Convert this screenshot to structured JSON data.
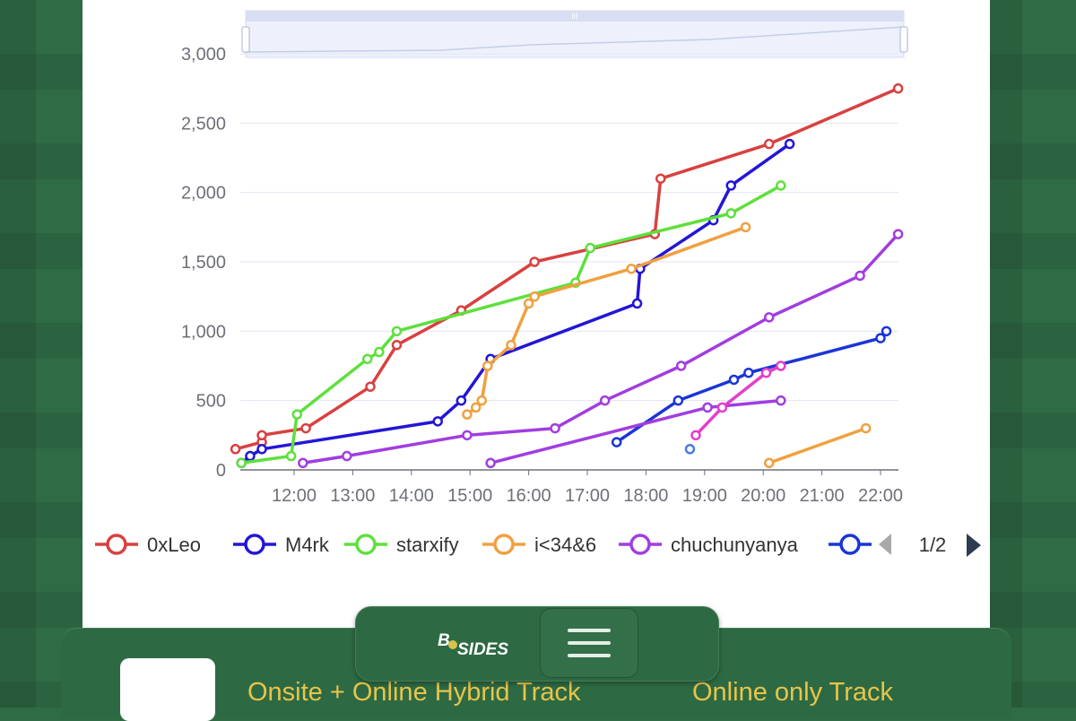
{
  "chart_data": {
    "type": "line",
    "title": "",
    "xlabel": "",
    "ylabel": "",
    "x_ticks": [
      "12:00",
      "13:00",
      "14:00",
      "15:00",
      "16:00",
      "17:00",
      "18:00",
      "19:00",
      "20:00",
      "21:00",
      "22:00"
    ],
    "y_ticks": [
      "0",
      "500",
      "1,000",
      "1,500",
      "2,000",
      "2,500",
      "3,000"
    ],
    "ylim": [
      0,
      3000
    ],
    "xlim_hours": [
      11.0,
      22.3
    ],
    "grid": "horizontal",
    "legend_position": "bottom",
    "legend_page": "1/2",
    "series": [
      {
        "name": "0xLeo",
        "color": "#d94040",
        "points": [
          [
            11.0,
            150
          ],
          [
            11.45,
            200
          ],
          [
            11.45,
            250
          ],
          [
            12.2,
            300
          ],
          [
            13.3,
            600
          ],
          [
            13.75,
            900
          ],
          [
            14.85,
            1150
          ],
          [
            16.1,
            1500
          ],
          [
            18.15,
            1700
          ],
          [
            18.25,
            2100
          ],
          [
            20.1,
            2350
          ],
          [
            22.3,
            2750
          ]
        ]
      },
      {
        "name": "M4rk",
        "color": "#2216d6",
        "points": [
          [
            11.1,
            50
          ],
          [
            11.25,
            100
          ],
          [
            11.45,
            150
          ],
          [
            14.45,
            350
          ],
          [
            14.85,
            500
          ],
          [
            15.35,
            800
          ],
          [
            17.85,
            1200
          ],
          [
            17.9,
            1450
          ],
          [
            19.15,
            1800
          ],
          [
            19.45,
            2050
          ],
          [
            20.45,
            2350
          ]
        ]
      },
      {
        "name": "starxify",
        "color": "#5ee03c",
        "points": [
          [
            11.1,
            50
          ],
          [
            11.95,
            100
          ],
          [
            12.05,
            400
          ],
          [
            13.25,
            800
          ],
          [
            13.45,
            850
          ],
          [
            13.75,
            1000
          ],
          [
            16.8,
            1350
          ],
          [
            17.05,
            1600
          ],
          [
            19.45,
            1850
          ],
          [
            20.3,
            2050
          ]
        ]
      },
      {
        "name": "i<34&6",
        "color": "#f0a040",
        "points": [
          [
            14.95,
            400
          ],
          [
            15.1,
            450
          ],
          [
            15.2,
            500
          ],
          [
            15.3,
            750
          ],
          [
            15.7,
            900
          ],
          [
            16.0,
            1200
          ],
          [
            16.1,
            1250
          ],
          [
            17.75,
            1450
          ],
          [
            19.7,
            1750
          ]
        ]
      },
      {
        "name": "chuchunyanya",
        "color": "#a03ee0",
        "points": [
          [
            12.15,
            50
          ],
          [
            12.9,
            100
          ],
          [
            14.95,
            250
          ],
          [
            16.45,
            300
          ],
          [
            17.3,
            500
          ],
          [
            18.6,
            750
          ],
          [
            20.1,
            1100
          ],
          [
            21.65,
            1400
          ],
          [
            22.3,
            1700
          ]
        ]
      },
      {
        "name": "",
        "color": "#1a35d6",
        "points": [
          [
            17.5,
            200
          ],
          [
            18.55,
            500
          ],
          [
            19.5,
            650
          ],
          [
            19.75,
            700
          ],
          [
            22.0,
            950
          ],
          [
            22.1,
            1000
          ]
        ]
      },
      {
        "name": "",
        "color": "#a03ee0",
        "points": [
          [
            15.35,
            50
          ],
          [
            19.05,
            450
          ],
          [
            20.3,
            500
          ]
        ]
      },
      {
        "name": "",
        "color": "#e33fc9",
        "points": [
          [
            18.85,
            250
          ],
          [
            19.3,
            450
          ],
          [
            20.05,
            700
          ],
          [
            20.3,
            750
          ]
        ]
      },
      {
        "name": "",
        "color": "#f0a040",
        "points": [
          [
            20.1,
            50
          ],
          [
            21.75,
            300
          ]
        ]
      },
      {
        "name": "",
        "color": "#4a7be0",
        "points": [
          [
            18.75,
            150
          ]
        ]
      }
    ]
  },
  "footer": {
    "hybrid_track": "Onsite + Online Hybrid Track",
    "online_track": "Online only Track",
    "logo_b": "B",
    "logo_sides": "SIDES"
  }
}
